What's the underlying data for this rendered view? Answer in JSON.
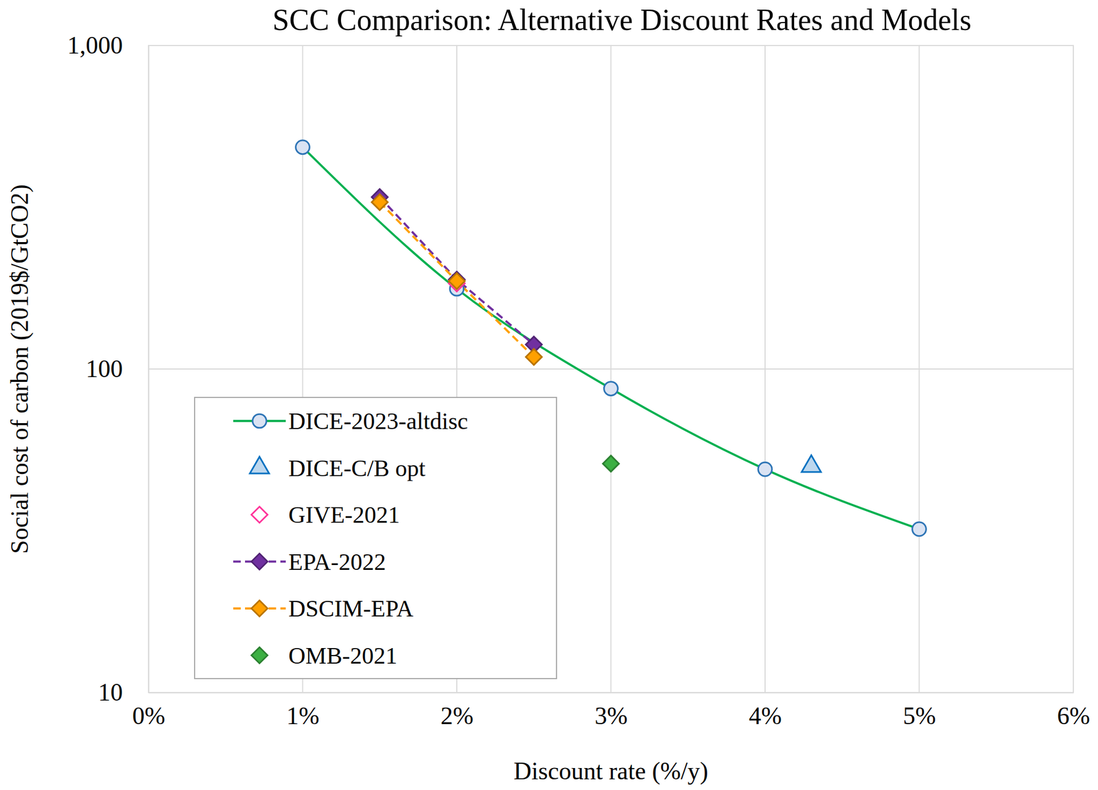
{
  "chart_data": {
    "type": "line",
    "title": "SCC Comparison: Alternative Discount Rates and Models",
    "x_label": "Discount rate (%/y)",
    "y_label": "Social cost of carbon (2019$/GtCO2)",
    "log": "y",
    "grid": true,
    "legend": "bottom-left",
    "xlim": [
      0,
      6
    ],
    "xticks": [
      {
        "value": 0,
        "label": "0%"
      },
      {
        "value": 1,
        "label": "1%"
      },
      {
        "value": 2,
        "label": "2%"
      },
      {
        "value": 3,
        "label": "3%"
      },
      {
        "value": 4,
        "label": "4%"
      },
      {
        "value": 5,
        "label": "5%"
      },
      {
        "value": 6,
        "label": "6%"
      }
    ],
    "ylim": [
      10,
      1000
    ],
    "yticks": [
      10,
      100,
      {
        "value": 1000,
        "label": "1,000"
      }
    ],
    "series": [
      {
        "name": "DICE-2023-altdisc",
        "color": "#00b050",
        "marker": "circle",
        "line_style": "solid",
        "x": [
          1,
          2,
          3,
          4,
          5
        ],
        "values": [
          485,
          177,
          87,
          49,
          32
        ]
      },
      {
        "name": "DICE-C/B opt",
        "color": "#0070c0",
        "marker": "triangle",
        "line_style": "none",
        "x": [
          4.3
        ],
        "values": [
          50
        ]
      },
      {
        "name": "GIVE-2021",
        "color": "#ff3399",
        "marker": "open-diamond",
        "line_style": "none",
        "x": [
          2
        ],
        "values": [
          184
        ]
      },
      {
        "name": "EPA-2022",
        "color": "#7030a0",
        "marker": "diamond",
        "line_style": "dashed",
        "x": [
          1.5,
          2,
          2.5
        ],
        "values": [
          340,
          189,
          119
        ]
      },
      {
        "name": "DSCIM-EPA",
        "color": "#ffa000",
        "marker": "diamond",
        "line_style": "dashed",
        "x": [
          1.5,
          2,
          2.5
        ],
        "values": [
          328,
          187,
          109
        ]
      },
      {
        "name": "OMB-2021",
        "color": "#3cb043",
        "marker": "diamond",
        "line_style": "none",
        "x": [
          3
        ],
        "values": [
          51
        ]
      }
    ]
  }
}
